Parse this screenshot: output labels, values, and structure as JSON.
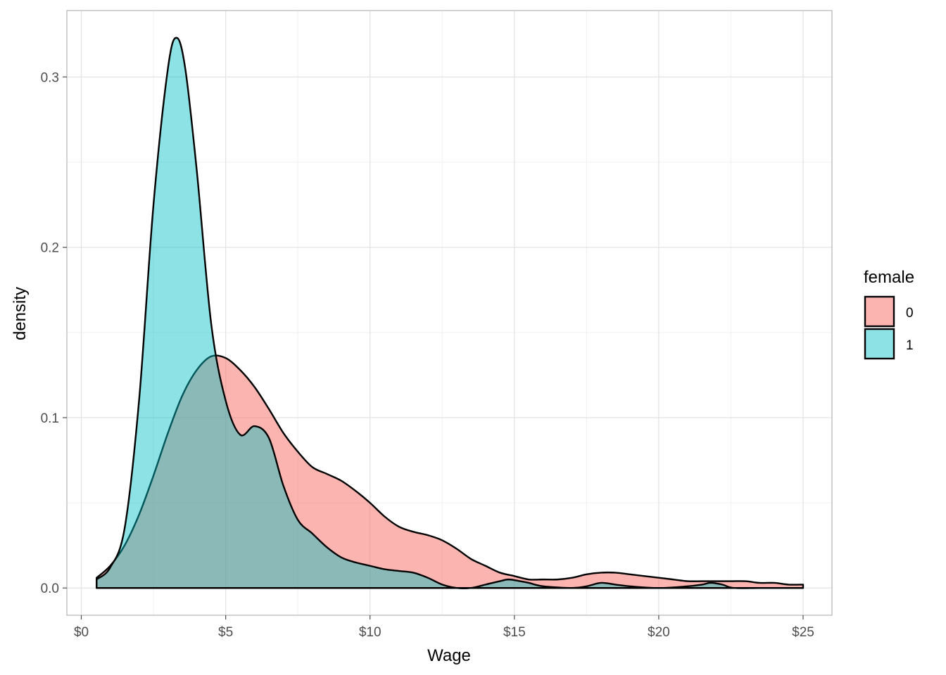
{
  "chart_data": {
    "type": "area",
    "xlabel": "Wage",
    "ylabel": "density",
    "xlim": [
      -0.5,
      26.0
    ],
    "ylim": [
      -0.016,
      0.339
    ],
    "x_ticks": [
      0,
      5,
      10,
      15,
      20,
      25
    ],
    "x_tick_labels": [
      "$0",
      "$5",
      "$10",
      "$15",
      "$20",
      "$25"
    ],
    "y_ticks": [
      0.0,
      0.1,
      0.2,
      0.3
    ],
    "y_tick_labels": [
      "0.0",
      "0.1",
      "0.2",
      "0.3"
    ],
    "grid": true,
    "legend": {
      "title": "female",
      "position": "right",
      "entries": [
        "0",
        "1"
      ]
    },
    "series": [
      {
        "name": "0",
        "color": "#F8766D",
        "x": [
          0.53,
          1.0,
          1.5,
          2.0,
          2.5,
          3.0,
          3.5,
          4.0,
          4.5,
          5.0,
          5.5,
          6.0,
          6.5,
          7.0,
          7.5,
          8.0,
          8.5,
          9.0,
          9.5,
          10.0,
          10.5,
          11.0,
          11.5,
          12.0,
          12.5,
          13.0,
          13.5,
          14.0,
          14.5,
          15.0,
          15.5,
          16.0,
          16.5,
          17.0,
          17.5,
          18.0,
          18.5,
          19.0,
          19.5,
          20.0,
          20.5,
          21.0,
          21.5,
          22.0,
          22.5,
          23.0,
          23.5,
          24.0,
          24.5,
          25.0
        ],
        "y": [
          0.006,
          0.013,
          0.025,
          0.043,
          0.066,
          0.091,
          0.113,
          0.128,
          0.136,
          0.135,
          0.128,
          0.118,
          0.105,
          0.091,
          0.08,
          0.071,
          0.067,
          0.063,
          0.057,
          0.05,
          0.042,
          0.036,
          0.033,
          0.031,
          0.028,
          0.023,
          0.017,
          0.013,
          0.009,
          0.007,
          0.005,
          0.005,
          0.005,
          0.006,
          0.008,
          0.009,
          0.009,
          0.008,
          0.007,
          0.006,
          0.005,
          0.004,
          0.004,
          0.004,
          0.004,
          0.004,
          0.003,
          0.003,
          0.002,
          0.002
        ]
      },
      {
        "name": "1",
        "color": "#00BFC4",
        "x": [
          0.53,
          1.0,
          1.5,
          2.0,
          2.5,
          3.0,
          3.3,
          3.6,
          4.0,
          4.5,
          5.0,
          5.5,
          6.0,
          6.5,
          7.0,
          7.5,
          8.0,
          8.5,
          9.0,
          9.5,
          10.0,
          10.5,
          11.0,
          11.5,
          12.0,
          12.5,
          13.0,
          13.5,
          14.0,
          14.5,
          14.8,
          15.2,
          15.5,
          16.0,
          17.0,
          17.5,
          18.0,
          18.5,
          19.0,
          20.0,
          21.0,
          21.5,
          21.8,
          22.2,
          22.6,
          23.5,
          24.5,
          25.0
        ],
        "y": [
          0.005,
          0.012,
          0.035,
          0.11,
          0.225,
          0.305,
          0.323,
          0.305,
          0.245,
          0.155,
          0.11,
          0.09,
          0.095,
          0.088,
          0.06,
          0.04,
          0.032,
          0.024,
          0.018,
          0.015,
          0.013,
          0.011,
          0.01,
          0.009,
          0.006,
          0.002,
          0.0,
          0.0,
          0.002,
          0.004,
          0.005,
          0.004,
          0.003,
          0.001,
          0.0,
          0.001,
          0.003,
          0.002,
          0.001,
          0.0,
          0.001,
          0.002,
          0.003,
          0.002,
          0.0,
          0.0,
          0.0,
          0.0
        ]
      }
    ]
  }
}
